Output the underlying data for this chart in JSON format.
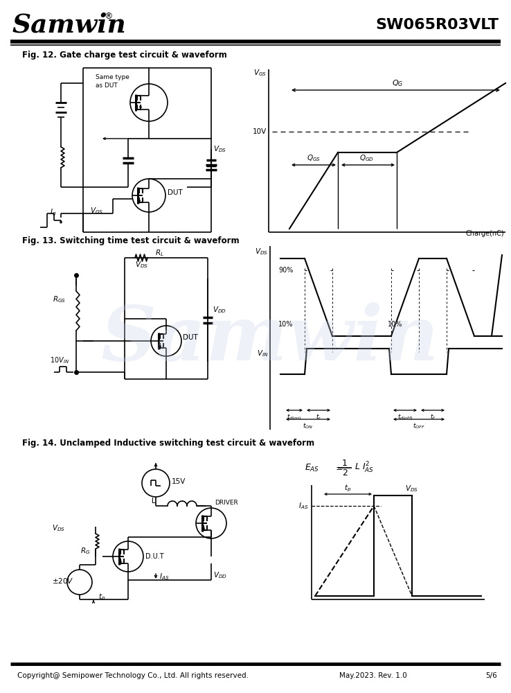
{
  "title_logo": "Samwin",
  "title_part": "SW065R03VLT",
  "fig12_title": "Fig. 12. Gate charge test circuit & waveform",
  "fig13_title": "Fig. 13. Switching time test circuit & waveform",
  "fig14_title": "Fig. 14. Unclamped Inductive switching test circuit & waveform",
  "footer_left": "Copyright@ Semipower Technology Co., Ltd. All rights reserved.",
  "footer_mid": "May.2023. Rev. 1.0",
  "footer_right": "5/6",
  "bg_color": "#ffffff",
  "line_color": "#000000",
  "watermark_color": "#c8d4e8"
}
